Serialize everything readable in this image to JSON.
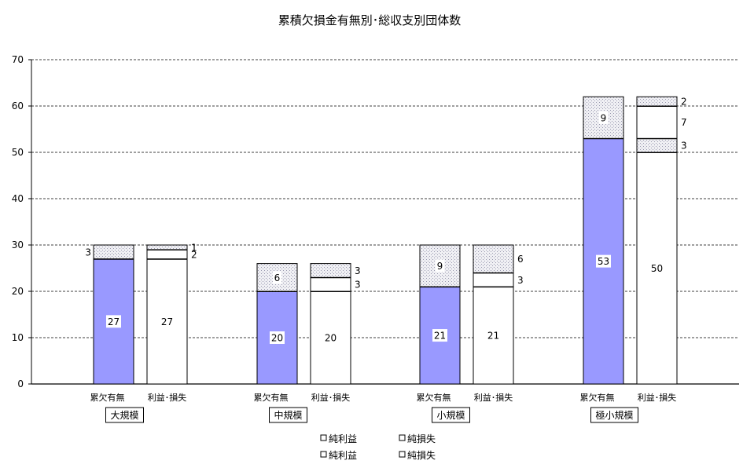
{
  "chart_data": {
    "type": "bar",
    "stacked": true,
    "title": "累積欠損金有無別･総収支別団体数",
    "ylim": [
      0,
      70
    ],
    "yticks": [
      0,
      10,
      20,
      30,
      40,
      50,
      60,
      70
    ],
    "grid": "dashed horizontal",
    "groups": [
      {
        "label": "大規模",
        "bars": [
          {
            "label": "累欠有無",
            "segments": [
              {
                "value": 27,
                "fill": "solid",
                "label": "27"
              },
              {
                "value": 3,
                "fill": "dotted",
                "label": "3"
              }
            ]
          },
          {
            "label": "利益･損失",
            "segments": [
              {
                "value": 27,
                "fill": "blank",
                "label": "27"
              },
              {
                "value": 2,
                "fill": "blank",
                "label": "2"
              },
              {
                "value": 1,
                "fill": "dotted",
                "label": "1"
              }
            ]
          }
        ]
      },
      {
        "label": "中規模",
        "bars": [
          {
            "label": "累欠有無",
            "segments": [
              {
                "value": 20,
                "fill": "solid",
                "label": "20"
              },
              {
                "value": 6,
                "fill": "dotted",
                "label": "6"
              }
            ]
          },
          {
            "label": "利益･損失",
            "segments": [
              {
                "value": 20,
                "fill": "blank",
                "label": "20"
              },
              {
                "value": 3,
                "fill": "blank",
                "label": "3"
              },
              {
                "value": 3,
                "fill": "dotted",
                "label": "3"
              }
            ]
          }
        ]
      },
      {
        "label": "小規模",
        "bars": [
          {
            "label": "累欠有無",
            "segments": [
              {
                "value": 21,
                "fill": "solid",
                "label": "21"
              },
              {
                "value": 9,
                "fill": "dotted",
                "label": "9"
              }
            ]
          },
          {
            "label": "利益･損失",
            "segments": [
              {
                "value": 21,
                "fill": "blank",
                "label": "21"
              },
              {
                "value": 3,
                "fill": "blank",
                "label": "3"
              },
              {
                "value": 6,
                "fill": "dotted",
                "label": "6"
              }
            ]
          }
        ]
      },
      {
        "label": "極小規模",
        "bars": [
          {
            "label": "累欠有無",
            "segments": [
              {
                "value": 53,
                "fill": "solid",
                "label": "53"
              },
              {
                "value": 9,
                "fill": "dotted",
                "label": "9"
              }
            ]
          },
          {
            "label": "利益･損失",
            "segments": [
              {
                "value": 50,
                "fill": "blank",
                "label": "50"
              },
              {
                "value": 3,
                "fill": "dotted",
                "label": "3"
              },
              {
                "value": 7,
                "fill": "blank",
                "label": "7"
              },
              {
                "value": 2,
                "fill": "dotted",
                "label": "2"
              }
            ]
          }
        ]
      }
    ],
    "legend": [
      "純利益",
      "純損失",
      "純利益",
      "純損失"
    ],
    "legend_placement": "bottom-center"
  },
  "colors": {
    "solid": "#9999ff",
    "dotted_bg": "#f0f0f4",
    "dotted_dot": "#9a9ab0",
    "axis": "#000000",
    "grid": "#000000"
  }
}
